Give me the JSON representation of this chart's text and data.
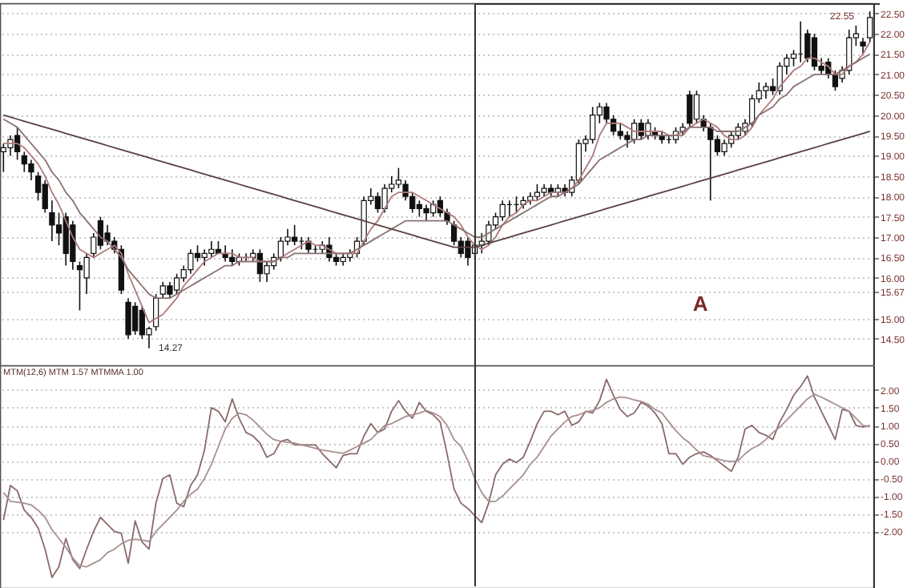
{
  "chart_data": [
    {
      "type": "candlestick",
      "grid": "y",
      "tick_labels": "y",
      "categories": [
        null,
        null,
        null,
        null,
        null,
        null,
        null,
        null,
        null,
        null,
        null,
        null,
        null,
        null,
        null,
        null,
        null,
        null,
        null,
        null,
        null,
        null,
        null,
        null,
        null,
        null,
        null,
        null,
        null,
        null,
        null,
        null,
        null,
        null,
        null,
        null,
        null,
        null,
        null,
        null,
        null,
        null,
        null,
        null,
        null,
        null,
        null,
        null,
        null,
        null,
        null,
        null,
        null,
        null,
        null,
        null,
        null,
        null,
        null,
        null,
        null,
        null,
        null,
        null,
        null,
        null,
        null,
        null,
        null,
        null,
        null,
        null,
        null,
        null,
        null,
        null,
        null,
        null,
        null,
        null,
        null,
        null,
        null,
        null,
        null,
        null,
        null,
        null,
        null,
        null,
        null,
        null,
        null,
        null,
        null,
        null,
        null,
        null,
        null,
        null,
        null,
        null,
        null,
        null,
        null,
        null,
        null,
        null,
        null,
        null,
        null,
        null,
        null,
        null,
        null,
        null,
        null,
        null,
        null,
        null,
        null,
        null,
        null,
        null,
        null,
        null
      ],
      "ohlc": [
        [
          19.1,
          19.3,
          18.6,
          19.2
        ],
        [
          19.2,
          19.5,
          19.0,
          19.4
        ],
        [
          19.5,
          19.7,
          18.9,
          19.1
        ],
        [
          19.0,
          19.1,
          18.6,
          18.8
        ],
        [
          18.8,
          18.9,
          18.4,
          18.6
        ],
        [
          18.5,
          18.6,
          17.9,
          18.1
        ],
        [
          18.3,
          18.4,
          17.6,
          17.7
        ],
        [
          17.6,
          17.9,
          16.9,
          17.3
        ],
        [
          17.3,
          17.6,
          16.8,
          17.1
        ],
        [
          17.5,
          17.6,
          16.3,
          16.6
        ],
        [
          17.3,
          17.4,
          16.2,
          16.4
        ],
        [
          16.3,
          16.4,
          15.2,
          16.2
        ],
        [
          16.0,
          16.6,
          15.6,
          16.5
        ],
        [
          16.6,
          17.1,
          16.5,
          17.0
        ],
        [
          17.4,
          17.5,
          16.7,
          16.8
        ],
        [
          17.1,
          17.3,
          16.8,
          16.9
        ],
        [
          16.9,
          17.0,
          16.6,
          16.7
        ],
        [
          16.7,
          16.8,
          15.6,
          15.7
        ],
        [
          15.4,
          15.5,
          14.5,
          14.6
        ],
        [
          15.3,
          15.4,
          14.6,
          14.7
        ],
        [
          15.2,
          15.3,
          14.5,
          14.6
        ],
        [
          14.6,
          14.8,
          14.27,
          14.75
        ],
        [
          14.8,
          15.6,
          14.7,
          15.5
        ],
        [
          15.6,
          15.9,
          15.5,
          15.8
        ],
        [
          15.8,
          15.9,
          15.5,
          15.6
        ],
        [
          15.7,
          16.1,
          15.6,
          16.0
        ],
        [
          16.0,
          16.3,
          15.9,
          16.2
        ],
        [
          16.2,
          16.7,
          16.1,
          16.6
        ],
        [
          16.6,
          16.8,
          16.4,
          16.5
        ],
        [
          16.5,
          16.7,
          16.3,
          16.6
        ],
        [
          16.6,
          16.9,
          16.5,
          16.7
        ],
        [
          16.7,
          16.9,
          16.6,
          16.6
        ],
        [
          16.6,
          16.8,
          16.4,
          16.5
        ],
        [
          16.5,
          16.7,
          16.3,
          16.4
        ],
        [
          16.4,
          16.6,
          16.3,
          16.5
        ],
        [
          16.5,
          16.6,
          16.4,
          16.5
        ],
        [
          16.5,
          16.7,
          16.4,
          16.6
        ],
        [
          16.6,
          16.7,
          15.9,
          16.1
        ],
        [
          16.1,
          16.4,
          15.9,
          16.3
        ],
        [
          16.3,
          16.6,
          16.2,
          16.5
        ],
        [
          16.5,
          17.0,
          16.4,
          16.9
        ],
        [
          16.9,
          17.2,
          16.8,
          17.0
        ],
        [
          17.0,
          17.3,
          16.8,
          16.9
        ],
        [
          16.9,
          17.0,
          16.7,
          16.9
        ],
        [
          16.9,
          17.0,
          16.6,
          16.7
        ],
        [
          16.7,
          16.8,
          16.6,
          16.7
        ],
        [
          16.7,
          16.9,
          16.6,
          16.8
        ],
        [
          16.8,
          17.0,
          16.4,
          16.5
        ],
        [
          16.5,
          16.6,
          16.3,
          16.4
        ],
        [
          16.4,
          16.6,
          16.3,
          16.5
        ],
        [
          16.5,
          16.7,
          16.4,
          16.6
        ],
        [
          16.6,
          17.0,
          16.5,
          16.9
        ],
        [
          16.9,
          18.0,
          16.8,
          17.9
        ],
        [
          17.9,
          18.2,
          17.8,
          18.0
        ],
        [
          18.0,
          18.1,
          17.6,
          17.7
        ],
        [
          17.7,
          18.3,
          17.6,
          18.2
        ],
        [
          18.2,
          18.5,
          18.1,
          18.3
        ],
        [
          18.3,
          18.7,
          18.2,
          18.4
        ],
        [
          18.3,
          18.4,
          17.9,
          18.0
        ],
        [
          18.0,
          18.1,
          17.6,
          17.7
        ],
        [
          17.8,
          17.9,
          17.5,
          17.7
        ],
        [
          17.7,
          17.8,
          17.4,
          17.6
        ],
        [
          17.6,
          17.9,
          17.5,
          17.8
        ],
        [
          17.9,
          18.0,
          17.5,
          17.6
        ],
        [
          17.6,
          17.7,
          17.3,
          17.4
        ],
        [
          17.3,
          17.4,
          16.8,
          16.9
        ],
        [
          16.9,
          17.0,
          16.5,
          16.6
        ],
        [
          16.9,
          17.0,
          16.3,
          16.5
        ],
        [
          16.6,
          16.9,
          16.5,
          16.8
        ],
        [
          16.8,
          17.1,
          16.6,
          16.9
        ],
        [
          16.9,
          17.4,
          16.8,
          17.3
        ],
        [
          17.3,
          17.6,
          17.2,
          17.5
        ],
        [
          17.5,
          17.9,
          17.4,
          17.8
        ],
        [
          17.8,
          17.9,
          17.5,
          17.8
        ],
        [
          17.8,
          18.0,
          17.6,
          17.8
        ],
        [
          17.8,
          18.0,
          17.7,
          17.9
        ],
        [
          17.9,
          18.1,
          17.8,
          18.0
        ],
        [
          18.0,
          18.3,
          17.9,
          18.1
        ],
        [
          18.1,
          18.3,
          18.0,
          18.2
        ],
        [
          18.2,
          18.3,
          18.0,
          18.1
        ],
        [
          18.1,
          18.3,
          18.0,
          18.2
        ],
        [
          18.2,
          18.3,
          18.0,
          18.1
        ],
        [
          18.1,
          18.5,
          18.0,
          18.4
        ],
        [
          18.4,
          19.4,
          18.3,
          19.3
        ],
        [
          19.3,
          19.5,
          19.1,
          19.4
        ],
        [
          19.4,
          20.2,
          19.3,
          20.0
        ],
        [
          20.0,
          20.3,
          19.8,
          20.2
        ],
        [
          20.2,
          20.3,
          19.8,
          19.9
        ],
        [
          19.9,
          20.0,
          19.5,
          19.6
        ],
        [
          19.6,
          19.8,
          19.4,
          19.5
        ],
        [
          19.5,
          19.6,
          19.2,
          19.4
        ],
        [
          19.4,
          19.9,
          19.3,
          19.8
        ],
        [
          19.8,
          19.9,
          19.4,
          19.5
        ],
        [
          19.5,
          19.9,
          19.4,
          19.8
        ],
        [
          19.6,
          19.7,
          19.4,
          19.5
        ],
        [
          19.5,
          19.6,
          19.3,
          19.4
        ],
        [
          19.4,
          19.5,
          19.3,
          19.4
        ],
        [
          19.4,
          19.7,
          19.3,
          19.6
        ],
        [
          19.6,
          19.8,
          19.5,
          19.7
        ],
        [
          20.5,
          20.6,
          19.7,
          19.8
        ],
        [
          19.9,
          20.6,
          19.8,
          20.5
        ],
        [
          19.9,
          20.0,
          19.6,
          19.7
        ],
        [
          19.7,
          19.8,
          17.9,
          19.4
        ],
        [
          19.4,
          19.5,
          19.0,
          19.1
        ],
        [
          19.1,
          19.4,
          19.0,
          19.3
        ],
        [
          19.3,
          19.6,
          19.2,
          19.5
        ],
        [
          19.5,
          19.8,
          19.4,
          19.7
        ],
        [
          19.6,
          19.9,
          19.5,
          19.8
        ],
        [
          19.8,
          20.5,
          19.7,
          20.4
        ],
        [
          20.4,
          20.8,
          20.3,
          20.6
        ],
        [
          20.6,
          20.8,
          20.4,
          20.7
        ],
        [
          20.7,
          20.9,
          20.5,
          20.6
        ],
        [
          20.6,
          21.3,
          20.5,
          21.2
        ],
        [
          21.2,
          21.5,
          21.0,
          21.4
        ],
        [
          21.4,
          21.6,
          21.2,
          21.5
        ],
        [
          21.5,
          22.3,
          21.3,
          21.5
        ],
        [
          22.0,
          22.1,
          21.3,
          21.4
        ],
        [
          21.9,
          22.0,
          21.1,
          21.2
        ],
        [
          21.2,
          21.4,
          21.0,
          21.1
        ],
        [
          21.3,
          21.4,
          20.9,
          21.0
        ],
        [
          21.0,
          21.1,
          20.6,
          20.7
        ],
        [
          20.9,
          21.2,
          20.8,
          21.1
        ],
        [
          21.1,
          22.1,
          21.0,
          21.9
        ],
        [
          21.9,
          22.2,
          21.7,
          22.0
        ],
        [
          21.8,
          21.9,
          21.5,
          21.7
        ],
        [
          21.9,
          22.55,
          21.8,
          22.4
        ]
      ],
      "series": [
        {
          "type": "line",
          "color": "#b07a7a",
          "values": [
            19.3,
            19.3,
            19.3,
            19.2,
            19.0,
            18.8,
            18.5,
            18.1,
            17.8,
            17.4,
            17.0,
            16.7,
            16.6,
            16.5,
            16.6,
            16.7,
            16.8,
            16.6,
            16.1,
            15.7,
            15.3,
            14.9,
            15.0,
            15.1,
            15.3,
            15.5,
            15.8,
            16.0,
            16.2,
            16.4,
            16.5,
            16.6,
            16.6,
            16.6,
            16.5,
            16.5,
            16.5,
            16.4,
            16.4,
            16.4,
            16.5,
            16.6,
            16.7,
            16.8,
            16.9,
            16.8,
            16.8,
            16.7,
            16.6,
            16.6,
            16.6,
            16.6,
            16.9,
            17.2,
            17.4,
            17.7,
            18.0,
            18.1,
            18.1,
            18.1,
            18.0,
            17.9,
            17.8,
            17.7,
            17.6,
            17.5,
            17.3,
            17.0,
            16.8,
            16.7,
            16.8,
            17.0,
            17.3,
            17.5,
            17.6,
            17.8,
            17.9,
            17.9,
            18.0,
            18.1,
            18.1,
            18.1,
            18.2,
            18.4,
            18.7,
            19.0,
            19.5,
            19.8,
            19.8,
            19.8,
            19.7,
            19.6,
            19.6,
            19.6,
            19.6,
            19.6,
            19.5,
            19.5,
            19.5,
            19.7,
            19.8,
            19.9,
            19.8,
            19.7,
            19.5,
            19.4,
            19.4,
            19.5,
            19.7,
            20.0,
            20.2,
            20.4,
            20.7,
            20.9,
            21.1,
            21.2,
            21.4,
            21.4,
            21.3,
            21.2,
            21.0,
            21.0,
            21.2,
            21.3,
            21.5,
            21.8
          ]
        },
        {
          "type": "line",
          "color": "#8a7070",
          "values": [
            19.9,
            19.8,
            19.7,
            19.5,
            19.3,
            19.1,
            18.9,
            18.6,
            18.4,
            18.1,
            17.9,
            17.6,
            17.4,
            17.2,
            17.0,
            16.9,
            16.7,
            16.5,
            16.2,
            16.0,
            15.8,
            15.6,
            15.5,
            15.5,
            15.5,
            15.6,
            15.7,
            15.8,
            15.9,
            16.0,
            16.1,
            16.2,
            16.3,
            16.3,
            16.4,
            16.4,
            16.4,
            16.4,
            16.4,
            16.4,
            16.5,
            16.5,
            16.6,
            16.6,
            16.6,
            16.6,
            16.6,
            16.6,
            16.6,
            16.6,
            16.6,
            16.7,
            16.8,
            16.9,
            17.0,
            17.1,
            17.2,
            17.3,
            17.4,
            17.4,
            17.4,
            17.4,
            17.4,
            17.4,
            17.4,
            17.3,
            17.2,
            17.1,
            17.0,
            17.0,
            17.1,
            17.2,
            17.3,
            17.4,
            17.5,
            17.6,
            17.7,
            17.8,
            17.9,
            18.0,
            18.0,
            18.1,
            18.2,
            18.3,
            18.5,
            18.7,
            18.9,
            19.0,
            19.1,
            19.2,
            19.3,
            19.4,
            19.4,
            19.5,
            19.5,
            19.5,
            19.5,
            19.5,
            19.6,
            19.7,
            19.7,
            19.7,
            19.7,
            19.6,
            19.6,
            19.6,
            19.6,
            19.7,
            19.8,
            20.0,
            20.1,
            20.2,
            20.4,
            20.5,
            20.7,
            20.8,
            20.9,
            21.0,
            21.0,
            21.0,
            21.0,
            21.1,
            21.2,
            21.3,
            21.4,
            21.5
          ]
        },
        {
          "type": "line",
          "color": "#5a4040",
          "values": [
            20.0,
            19.95,
            19.9,
            19.85,
            19.8,
            19.75,
            19.7,
            19.65,
            19.6,
            19.55,
            19.5,
            19.45,
            19.4,
            19.35,
            19.3,
            19.25,
            19.2,
            19.15,
            19.1,
            19.05,
            19.0,
            18.95,
            18.9,
            18.85,
            18.8,
            18.75,
            18.7,
            18.65,
            18.6,
            18.55,
            18.5,
            18.45,
            18.4,
            18.35,
            18.3,
            18.25,
            18.2,
            18.15,
            18.1,
            18.05,
            18.0,
            17.95,
            17.9,
            17.85,
            17.8,
            17.75,
            17.7,
            17.65,
            17.6,
            17.55,
            17.5,
            17.45,
            17.4,
            17.35,
            17.3,
            17.25,
            17.2,
            17.15,
            17.1,
            17.05,
            17.0,
            16.95,
            16.9,
            16.85,
            16.8,
            16.75,
            16.75,
            16.75,
            16.75,
            16.8,
            16.85,
            16.9,
            16.95,
            17.0,
            17.05,
            17.1,
            17.15,
            17.2,
            17.25,
            17.3,
            17.35,
            17.4,
            17.45,
            17.5,
            17.55,
            17.6,
            17.65,
            17.7,
            17.75,
            17.8,
            17.85,
            17.9,
            17.95,
            18.0,
            18.05,
            18.1,
            18.15,
            18.2,
            18.25,
            18.3,
            18.35,
            18.4,
            18.45,
            18.5,
            18.55,
            18.6,
            18.65,
            18.7,
            18.75,
            18.8,
            18.85,
            18.9,
            18.95,
            19.0,
            19.05,
            19.1,
            19.15,
            19.2,
            19.25,
            19.3,
            19.35,
            19.4,
            19.45,
            19.5,
            19.55,
            19.6
          ]
        }
      ],
      "ylim": [
        13.85,
        22.75
      ],
      "yticks": [
        {
          "value": 14.5,
          "label": "14.50"
        },
        {
          "value": 15,
          "label": "15.00"
        },
        {
          "value": 15.67,
          "label": "15.67"
        },
        {
          "value": 16,
          "label": "16.00"
        },
        {
          "value": 16.5,
          "label": "16.50"
        },
        {
          "value": 17,
          "label": "17.00"
        },
        {
          "value": 17.5,
          "label": "17.50"
        },
        {
          "value": 18,
          "label": "18.00"
        },
        {
          "value": 18.5,
          "label": "18.50"
        },
        {
          "value": 19,
          "label": "19.00"
        },
        {
          "value": 19.5,
          "label": "19.50"
        },
        {
          "value": 20,
          "label": "20.00"
        },
        {
          "value": 20.5,
          "label": "20.50"
        },
        {
          "value": 21,
          "label": "21.00"
        },
        {
          "value": 21.5,
          "label": "21.50"
        },
        {
          "value": 22,
          "label": "22.00"
        },
        {
          "value": 22.5,
          "label": "22.50"
        }
      ],
      "annotations": [
        "14.27",
        "22.55",
        "A"
      ]
    },
    {
      "type": "line",
      "title": "MTM(12,6) MTM 1.57 MTMMA 1.00",
      "grid": "y",
      "tick_labels": "y",
      "categories": [
        null,
        null,
        null,
        null,
        null,
        null,
        null,
        null,
        null,
        null,
        null,
        null,
        null,
        null,
        null,
        null,
        null,
        null,
        null,
        null,
        null,
        null,
        null,
        null,
        null,
        null,
        null,
        null,
        null,
        null,
        null,
        null,
        null,
        null,
        null,
        null,
        null,
        null,
        null,
        null,
        null,
        null,
        null,
        null,
        null,
        null,
        null,
        null,
        null,
        null,
        null,
        null,
        null,
        null,
        null,
        null,
        null,
        null,
        null,
        null,
        null,
        null,
        null,
        null,
        null,
        null,
        null,
        null,
        null,
        null,
        null,
        null,
        null,
        null,
        null,
        null,
        null,
        null,
        null,
        null,
        null,
        null,
        null,
        null,
        null,
        null,
        null,
        null,
        null,
        null,
        null,
        null,
        null,
        null,
        null,
        null,
        null,
        null,
        null,
        null,
        null,
        null,
        null,
        null,
        null,
        null,
        null,
        null,
        null,
        null,
        null,
        null,
        null,
        null,
        null,
        null,
        null,
        null,
        null,
        null,
        null,
        null,
        null,
        null,
        null,
        null
      ],
      "series": [
        {
          "color": "#8a6a6a",
          "values": [
            -1.68,
            -0.7,
            -0.85,
            -1.4,
            -1.6,
            -1.9,
            -2.5,
            -3.3,
            -3.0,
            -2.2,
            -2.8,
            -3.05,
            -2.5,
            -2.0,
            -1.6,
            -1.8,
            -2.0,
            -2.05,
            -2.9,
            -1.7,
            -2.3,
            -2.5,
            -1.2,
            -0.5,
            -0.4,
            -1.2,
            -1.3,
            -0.7,
            -0.4,
            0.3,
            1.5,
            1.4,
            1.1,
            1.75,
            1.2,
            0.8,
            0.7,
            0.5,
            0.1,
            0.2,
            0.55,
            0.6,
            0.45,
            0.45,
            0.45,
            0.45,
            0.2,
            0.0,
            -0.2,
            0.15,
            0.2,
            0.2,
            0.7,
            1.05,
            0.8,
            0.9,
            1.4,
            1.7,
            1.4,
            1.2,
            1.65,
            1.4,
            1.3,
            1.1,
            0.2,
            -0.8,
            -1.2,
            -1.35,
            -1.55,
            -1.75,
            -1.2,
            -0.4,
            -0.1,
            0.05,
            -0.05,
            0.1,
            0.55,
            1.05,
            1.4,
            1.4,
            1.3,
            1.4,
            1.0,
            1.1,
            1.4,
            1.35,
            1.7,
            2.3,
            1.85,
            1.45,
            1.25,
            1.35,
            1.65,
            1.55,
            1.35,
            1.05,
            0.2,
            0.2,
            -0.1,
            0.1,
            0.2,
            0.25,
            0.15,
            0.0,
            -0.15,
            -0.3,
            0.1,
            0.9,
            1.0,
            0.8,
            0.72,
            0.6,
            1.1,
            1.45,
            1.85,
            2.1,
            2.4,
            1.8,
            1.4,
            1.0,
            0.6,
            1.45,
            1.4,
            1.0,
            0.95,
            1.0
          ]
        },
        {
          "color": "#a89090",
          "values": [
            -0.9,
            -1.15,
            -1.17,
            -1.2,
            -1.25,
            -1.4,
            -1.6,
            -1.95,
            -2.2,
            -2.45,
            -2.75,
            -2.97,
            -3.0,
            -2.9,
            -2.8,
            -2.6,
            -2.5,
            -2.35,
            -2.25,
            -2.22,
            -2.25,
            -2.28,
            -2.0,
            -1.8,
            -1.6,
            -1.4,
            -1.15,
            -0.95,
            -0.8,
            -0.5,
            -0.1,
            0.4,
            0.9,
            1.2,
            1.35,
            1.3,
            1.15,
            0.95,
            0.75,
            0.6,
            0.55,
            0.52,
            0.5,
            0.45,
            0.4,
            0.35,
            0.3,
            0.27,
            0.24,
            0.21,
            0.3,
            0.4,
            0.5,
            0.6,
            0.8,
            1.0,
            1.05,
            1.15,
            1.25,
            1.3,
            1.35,
            1.42,
            1.35,
            1.25,
            1.0,
            0.6,
            0.4,
            0.0,
            -0.5,
            -0.9,
            -1.15,
            -1.15,
            -1.0,
            -0.8,
            -0.6,
            -0.4,
            -0.1,
            0.1,
            0.4,
            0.7,
            0.9,
            1.1,
            1.25,
            1.3,
            1.38,
            1.42,
            1.5,
            1.65,
            1.75,
            1.8,
            1.78,
            1.72,
            1.68,
            1.6,
            1.45,
            1.35,
            1.1,
            0.85,
            0.65,
            0.5,
            0.3,
            0.14,
            0.1,
            0.05,
            0.0,
            -0.02,
            0.0,
            0.2,
            0.35,
            0.44,
            0.6,
            0.8,
            0.95,
            1.15,
            1.35,
            1.55,
            1.75,
            1.88,
            1.8,
            1.7,
            1.6,
            1.5,
            1.4,
            1.2,
            1.0,
            0.97
          ]
        }
      ],
      "ylim": [
        -3.6,
        2.7
      ],
      "yticks": [
        {
          "value": 2,
          "label": "2.00"
        },
        {
          "value": 1.5,
          "label": "1.50"
        },
        {
          "value": 1,
          "label": "1.00"
        },
        {
          "value": 0.5,
          "label": "0.50"
        },
        {
          "value": 0,
          "label": "0.00"
        },
        {
          "value": -0.5,
          "label": "-0.50"
        },
        {
          "value": -1,
          "label": "-1.00"
        },
        {
          "value": -1.5,
          "label": "-1.50"
        },
        {
          "value": -2,
          "label": "-2.00"
        }
      ]
    }
  ]
}
